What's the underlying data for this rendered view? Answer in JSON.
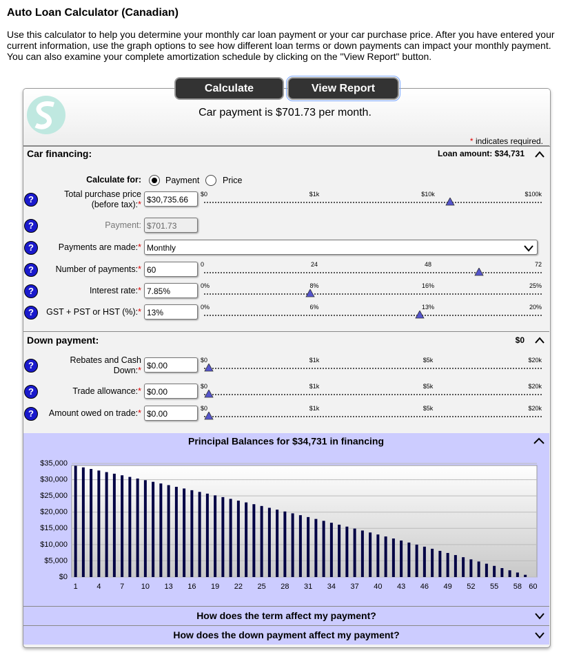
{
  "header": {
    "title": "Auto Loan Calculator (Canadian)",
    "intro": "Use this calculator to help you determine your monthly car loan payment or your car purchase price. After you have entered your current information, use the graph options to see how different loan terms or down payments can impact your monthly payment. You can also examine your complete amortization schedule by clicking on the \"View Report\" button."
  },
  "buttons": [
    "Calculate",
    "View Report"
  ],
  "result": "Car payment is $701.73 per month.",
  "required_marker": "*",
  "required_note": "indicates required.",
  "help_icon": "?",
  "sections": [
    {
      "title": "Car financing:",
      "summary": "Loan amount: $34,731"
    },
    {
      "title": "Down payment:",
      "summary": "$0"
    }
  ],
  "calculate_for": {
    "label": "Calculate for:",
    "options": [
      "Payment",
      "Price"
    ],
    "selected": 0
  },
  "fields": [
    {
      "label": "Total purchase price (before tax):",
      "value": "$30,735.66",
      "required": true,
      "kind": "input",
      "scale": [
        "$0",
        "$1k",
        "$10k",
        "$100k"
      ]
    },
    {
      "label": "Payment:",
      "value": "$701.73",
      "required": false,
      "kind": "readonly"
    },
    {
      "label": "Payments are made:",
      "value": "Monthly",
      "required": true,
      "kind": "select"
    },
    {
      "label": "Number of payments:",
      "value": "60",
      "required": true,
      "kind": "input",
      "scale": [
        "0",
        "24",
        "48",
        "72"
      ]
    },
    {
      "label": "Interest rate:",
      "value": "7.85%",
      "required": true,
      "kind": "input",
      "scale": [
        "0%",
        "8%",
        "16%",
        "25%"
      ]
    },
    {
      "label": "GST + PST or HST (%):",
      "value": "13%",
      "required": true,
      "kind": "input",
      "scale": [
        "0%",
        "6%",
        "13%",
        "20%"
      ]
    },
    {
      "label": "Rebates and Cash Down:",
      "value": "$0.00",
      "required": true,
      "kind": "input",
      "scale": [
        "$0",
        "$1k",
        "$5k",
        "$20k"
      ]
    },
    {
      "label": "Trade allowance:",
      "value": "$0.00",
      "required": true,
      "kind": "input",
      "scale": [
        "$0",
        "$1k",
        "$5k",
        "$20k"
      ]
    },
    {
      "label": "Amount owed on trade:",
      "value": "$0.00",
      "required": true,
      "kind": "input",
      "scale": [
        "$0",
        "$1k",
        "$5k",
        "$20k"
      ]
    }
  ],
  "chart_data": {
    "type": "bar",
    "title": "Principal Balances for $34,731 in financing",
    "categories": [
      1,
      null,
      null,
      4,
      null,
      null,
      7,
      null,
      null,
      10,
      null,
      null,
      13,
      null,
      null,
      16,
      null,
      null,
      19,
      null,
      null,
      22,
      null,
      null,
      25,
      null,
      null,
      28,
      null,
      null,
      31,
      null,
      null,
      34,
      null,
      null,
      37,
      null,
      null,
      40,
      null,
      null,
      43,
      null,
      null,
      46,
      null,
      null,
      49,
      null,
      null,
      52,
      null,
      null,
      55,
      null,
      null,
      58,
      null,
      60
    ],
    "values": [
      34256,
      33779,
      33298,
      32814,
      32327,
      31837,
      31343,
      30847,
      30347,
      29843,
      29337,
      28827,
      28314,
      27797,
      27278,
      26754,
      26228,
      25697,
      25164,
      24627,
      24086,
      23542,
      22994,
      22443,
      21888,
      21329,
      20767,
      20201,
      19632,
      19058,
      18481,
      17901,
      17316,
      16727,
      16135,
      15539,
      14939,
      14335,
      13727,
      13115,
      12499,
      11879,
      11255,
      10627,
      9995,
      9358,
      8718,
      8073,
      7424,
      6771,
      6114,
      5452,
      4786,
      4115,
      3441,
      2761,
      2078,
      1390,
      697,
      0
    ],
    "color": "#000044",
    "ylim": [
      0,
      35000
    ],
    "yticks": [
      {
        "value": 0,
        "label": "$0"
      },
      {
        "value": 5000,
        "label": "$5,000"
      },
      {
        "value": 10000,
        "label": "$10,000"
      },
      {
        "value": 15000,
        "label": "$15,000"
      },
      {
        "value": 20000,
        "label": "$20,000"
      },
      {
        "value": 25000,
        "label": "$25,000"
      },
      {
        "value": 30000,
        "label": "$30,000"
      },
      {
        "value": 35000,
        "label": "$35,000"
      }
    ],
    "grid": true
  },
  "questions": [
    "How does the term affect my payment?",
    "How does the down payment affect my payment?"
  ]
}
